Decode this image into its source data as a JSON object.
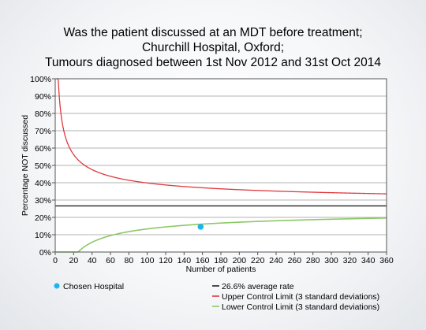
{
  "chart_data": {
    "type": "line",
    "title_lines": [
      "Was the patient discussed at an MDT before treatment;",
      "Churchill Hospital, Oxford;",
      "Tumours diagnosed between 1st Nov 2012 and 31st Oct 2014"
    ],
    "xlabel": "Number of patients",
    "ylabel": "Percentage NOT discussed",
    "xlim": [
      0,
      360
    ],
    "ylim": [
      0,
      100
    ],
    "x_ticks": [
      0,
      20,
      40,
      60,
      80,
      100,
      120,
      140,
      160,
      180,
      200,
      220,
      240,
      260,
      280,
      300,
      320,
      340,
      360
    ],
    "y_ticks": [
      0,
      10,
      20,
      30,
      40,
      50,
      60,
      70,
      80,
      90,
      100
    ],
    "y_tick_labels": [
      "0%",
      "10%",
      "20%",
      "30%",
      "40%",
      "50%",
      "60%",
      "70%",
      "80%",
      "90%",
      "100%"
    ],
    "grid": true,
    "average_rate": 26.6,
    "sd_multiplier": 3,
    "series": [
      {
        "name": "26.6% average rate",
        "kind": "average",
        "color": "#222222"
      },
      {
        "name": "Upper Control Limit (3 standard deviations)",
        "kind": "upper",
        "color": "#e0393e"
      },
      {
        "name": "Lower Control Limit (3 standard deviations)",
        "kind": "lower",
        "color": "#8cc866"
      }
    ],
    "points": [
      {
        "name": "Chosen Hospital",
        "x": 158,
        "y": 14.6,
        "color": "#1fb4f0"
      }
    ],
    "legend_placement": "bottom"
  }
}
